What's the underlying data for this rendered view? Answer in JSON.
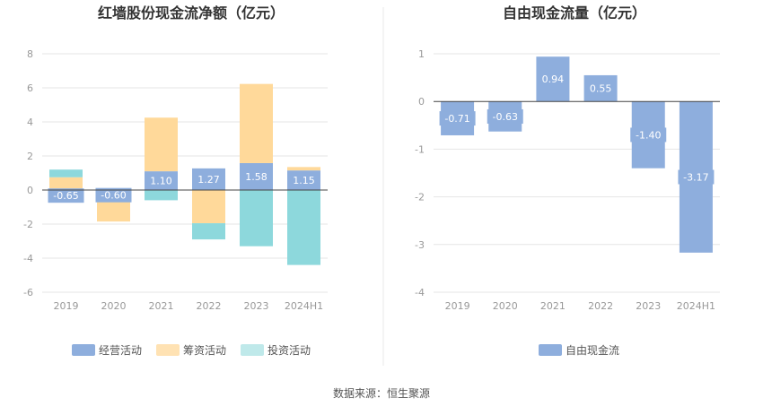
{
  "source_note": "数据来源：恒生聚源",
  "colors": {
    "operating": "#8eaedd",
    "financing": "#ffd99a",
    "investing": "#8dd8dc",
    "free_cf": "#8eaedd",
    "grid": "#e6e6e6",
    "zero": "#444444",
    "divider": "#e9e9e9"
  },
  "legend": {
    "left": [
      {
        "label": "经营活动",
        "swatch": "#8eaedd"
      },
      {
        "label": "筹资活动",
        "swatch": "#ffe2b3"
      },
      {
        "label": "投资活动",
        "swatch": "#bfe9ea"
      }
    ],
    "right": [
      {
        "label": "自由现金流",
        "swatch": "#8eaedd"
      }
    ]
  },
  "chart_data": [
    {
      "type": "bar",
      "stacked": true,
      "title": "红墙股份现金流净额（亿元）",
      "categories": [
        "2019",
        "2020",
        "2021",
        "2022",
        "2023",
        "2024H1"
      ],
      "ylim": [
        -6,
        8
      ],
      "yticks": [
        8,
        6,
        4,
        2,
        0,
        -2,
        -4,
        -6
      ],
      "grid": true,
      "legend_position": "bottom",
      "series": [
        {
          "name": "经营活动",
          "values": [
            -0.65,
            -0.6,
            1.1,
            1.27,
            1.58,
            1.15
          ]
        },
        {
          "name": "筹资活动",
          "values": [
            0.75,
            -1.25,
            3.15,
            -1.95,
            4.65,
            0.2
          ]
        },
        {
          "name": "投资活动",
          "values": [
            0.45,
            0,
            -0.6,
            -0.95,
            -3.3,
            -4.4
          ]
        }
      ],
      "data_labels": [
        "-0.65",
        "-0.60",
        "1.10",
        "1.27",
        "1.58",
        "1.15"
      ]
    },
    {
      "type": "bar",
      "title": "自由现金流量（亿元）",
      "categories": [
        "2019",
        "2020",
        "2021",
        "2022",
        "2023",
        "2024H1"
      ],
      "ylim": [
        -4,
        1
      ],
      "yticks": [
        1,
        0,
        -1,
        -2,
        -3,
        -4
      ],
      "grid": true,
      "legend_position": "bottom",
      "series": [
        {
          "name": "自由现金流",
          "values": [
            -0.71,
            -0.63,
            0.94,
            0.55,
            -1.4,
            -3.17
          ]
        }
      ],
      "data_labels": [
        "-0.71",
        "-0.63",
        "0.94",
        "0.55",
        "-1.40",
        "-3.17"
      ]
    }
  ]
}
